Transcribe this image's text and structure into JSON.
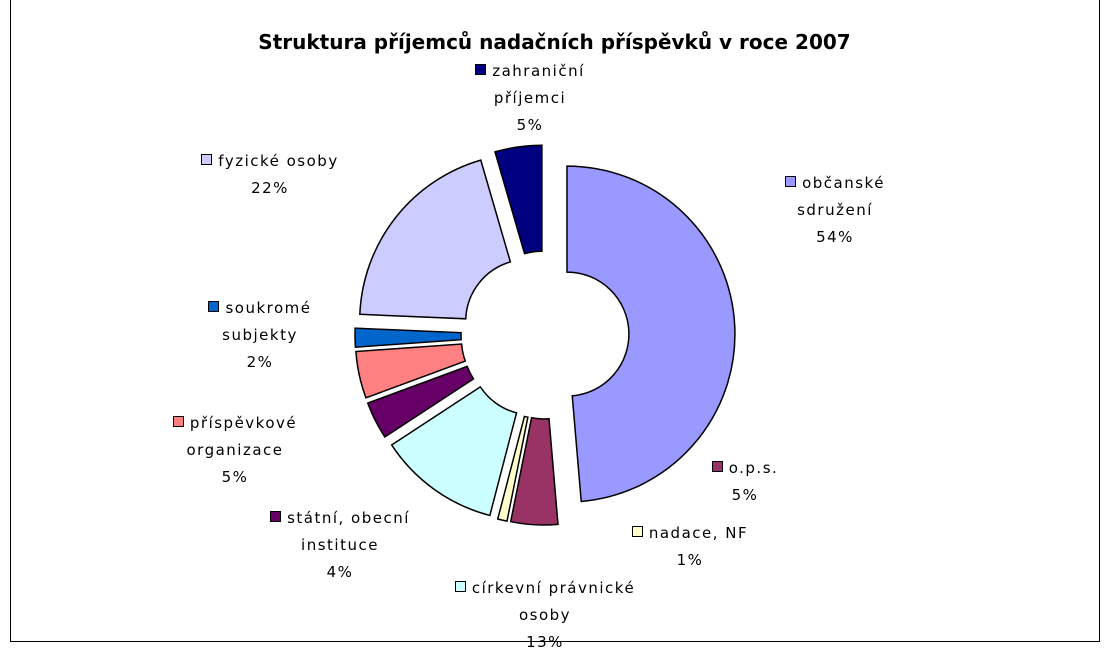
{
  "chart_data": {
    "type": "donut",
    "title": "Struktura příjemců nadačních příspěvků v roce 2007",
    "categories": [
      "občanské sdružení",
      "o.p.s.",
      "nadace, NF",
      "církevní právnické osoby",
      "státní, obecní instituce",
      "příspěvkové organizace",
      "soukromé subjekty",
      "fyzické osoby",
      "zahraniční příjemci"
    ],
    "values": [
      54,
      5,
      1,
      13,
      4,
      5,
      2,
      22,
      5
    ],
    "value_labels": [
      "54%",
      "5%",
      "1%",
      "13%",
      "4%",
      "5%",
      "2%",
      "22%",
      "5%"
    ],
    "colors": [
      "#9999ff",
      "#993366",
      "#ffffcc",
      "#ccffff",
      "#660066",
      "#ff8080",
      "#0066cc",
      "#ccccff",
      "#000080"
    ]
  }
}
